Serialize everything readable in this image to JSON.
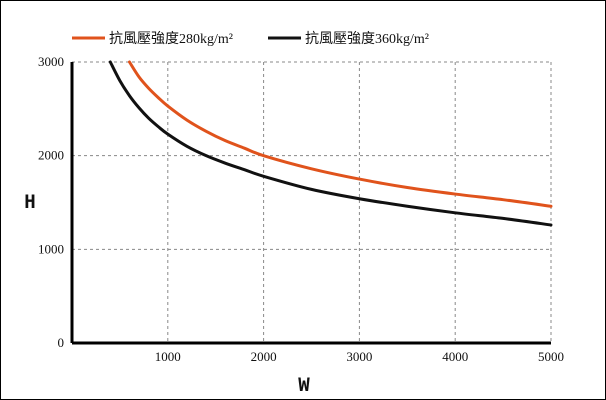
{
  "chart_data": {
    "type": "line",
    "title": "",
    "xlabel": "W",
    "ylabel": "H",
    "xlim": [
      0,
      5000
    ],
    "ylim": [
      0,
      3000
    ],
    "x_ticks": [
      1000,
      2000,
      3000,
      4000,
      5000
    ],
    "y_ticks": [
      0,
      1000,
      2000,
      3000
    ],
    "x_tick_labels": [
      "1000",
      "2000",
      "3000",
      "4000",
      "5000"
    ],
    "y_tick_labels": [
      "0",
      "1000",
      "2000",
      "3000"
    ],
    "grid": true,
    "legend_position": "top",
    "series": [
      {
        "name": "抗風壓強度280kg/m²",
        "color": "#e0531c",
        "x": [
          600,
          700,
          800,
          900,
          1000,
          1200,
          1400,
          1600,
          1800,
          2000,
          2500,
          3000,
          3500,
          4000,
          4500,
          5000
        ],
        "y": [
          3000,
          2840,
          2720,
          2620,
          2530,
          2380,
          2260,
          2160,
          2080,
          2000,
          1860,
          1750,
          1660,
          1590,
          1530,
          1460
        ]
      },
      {
        "name": "抗風壓強度360kg/m²",
        "color": "#111111",
        "x": [
          400,
          500,
          600,
          700,
          800,
          900,
          1000,
          1200,
          1400,
          1600,
          1800,
          2000,
          2500,
          3000,
          3500,
          4000,
          4500,
          5000
        ],
        "y": [
          3000,
          2800,
          2640,
          2510,
          2400,
          2310,
          2230,
          2100,
          2000,
          1920,
          1850,
          1780,
          1640,
          1540,
          1460,
          1390,
          1330,
          1260
        ]
      }
    ]
  }
}
